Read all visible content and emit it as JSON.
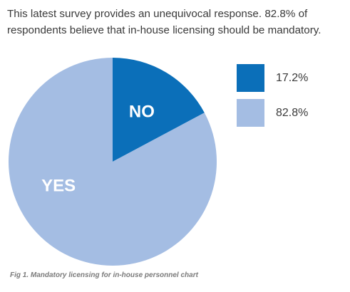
{
  "text": {
    "intro_line1": "This latest survey provides an unequivocal response. 82.8% of",
    "intro_line2": "respondents believe that in-house licensing should be mandatory.",
    "caption": "Fig 1. Mandatory licensing for in-house personnel chart"
  },
  "chart_data": {
    "type": "pie",
    "slices": [
      {
        "label": "NO",
        "value": 17.2,
        "value_label": "17.2%",
        "color": "#0b6fb9",
        "label_color": "#ffffff"
      },
      {
        "label": "YES",
        "value": 82.8,
        "value_label": "82.8%",
        "color": "#a4bde3",
        "label_color": "#ffffff"
      }
    ],
    "start_angle": "12 o'clock",
    "direction": "clockwise",
    "legend_placement": "right"
  }
}
